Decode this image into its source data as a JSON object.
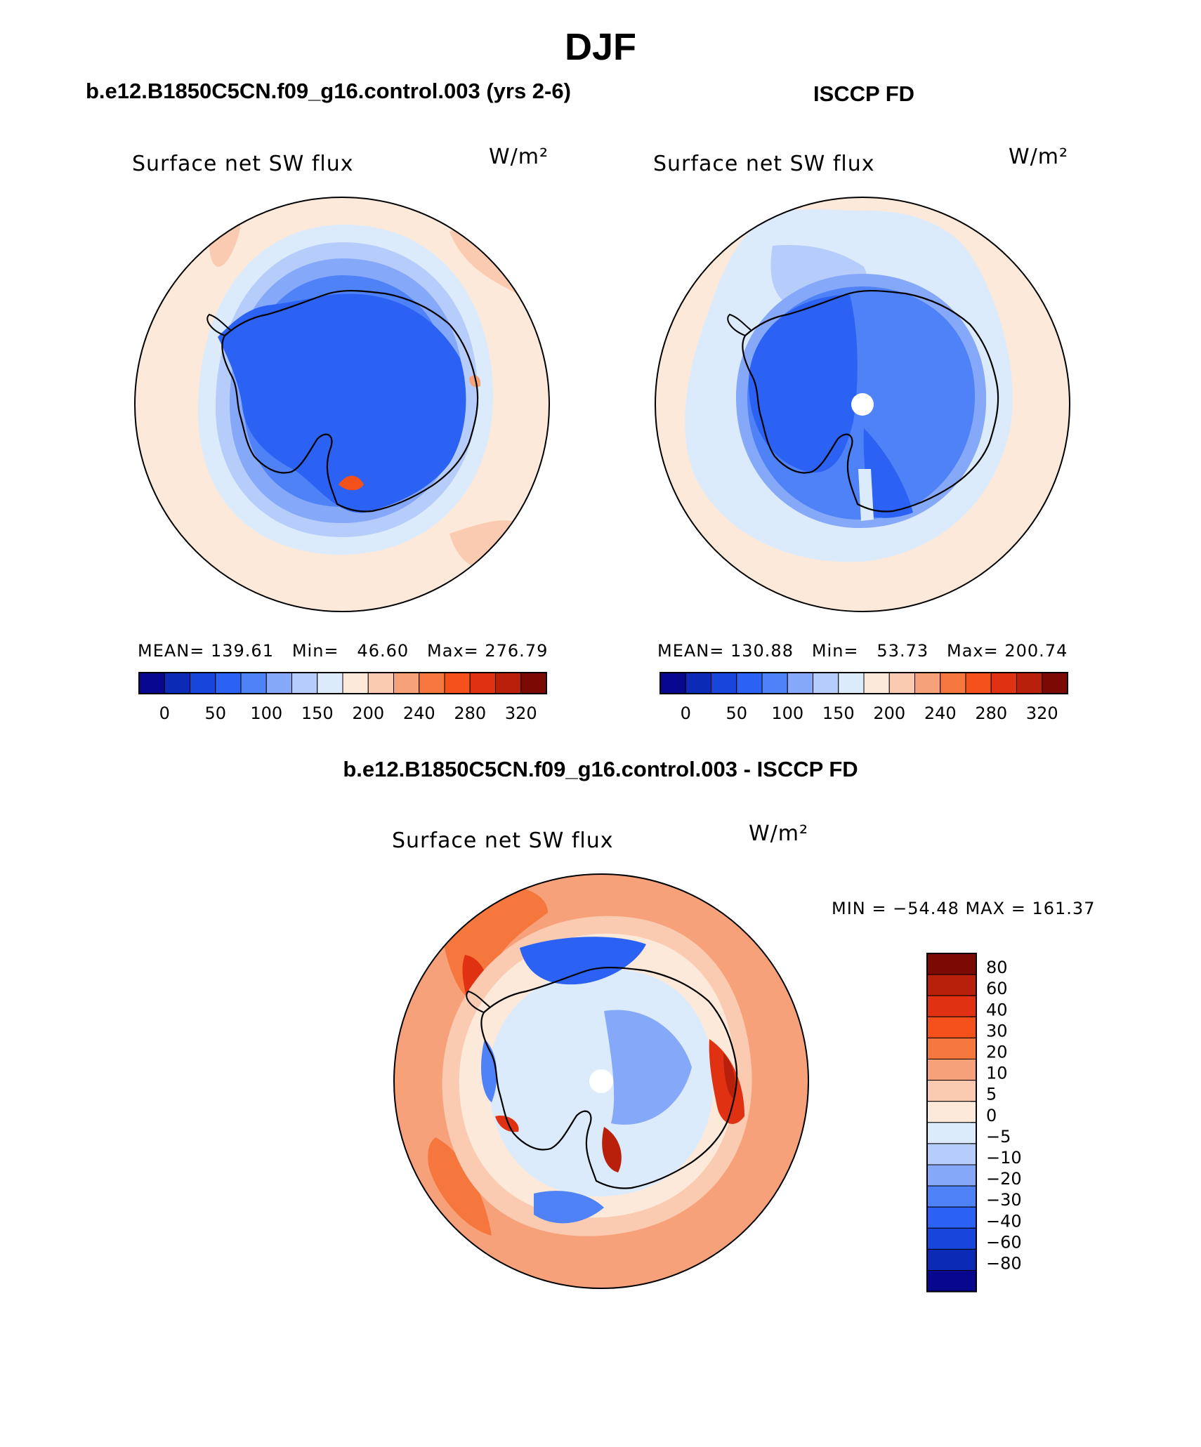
{
  "figure": {
    "title": "DJF",
    "panel_titles": {
      "model": "b.e12.B1850C5CN.f09_g16.control.003 (yrs 2-6)",
      "obs": "ISCCP FD",
      "diff": "b.e12.B1850C5CN.f09_g16.control.003 - ISCCP FD"
    }
  },
  "palettes": {
    "abs": [
      "#08088f",
      "#0b2bb6",
      "#1845dc",
      "#2c62f4",
      "#4f82f7",
      "#86a8f8",
      "#b6cdfb",
      "#dcebfc",
      "#fde9da",
      "#fbcbb1",
      "#f7a17b",
      "#f5773e",
      "#f4501b",
      "#e03212",
      "#b8200b",
      "#7c0a04"
    ],
    "diff": [
      "#7c0a04",
      "#b8200b",
      "#e03212",
      "#f4501b",
      "#f5773e",
      "#f7a17b",
      "#fbcbb1",
      "#fde9da",
      "#dcebfc",
      "#b6cdfb",
      "#86a8f8",
      "#4f82f7",
      "#2c62f4",
      "#1845dc",
      "#0b2bb6",
      "#08088f"
    ]
  },
  "chart_data": [
    {
      "type": "heatmap",
      "panel": "model",
      "title": "Surface net SW flux",
      "units": "W/m²",
      "stats_text": "MEAN= 139.61   Min=   46.60   Max= 276.79",
      "stats": {
        "mean": 139.61,
        "min": 46.6,
        "max": 276.79
      },
      "colorbar_labels": [
        "0",
        "50",
        "100",
        "150",
        "200",
        "240",
        "280",
        "320"
      ],
      "contour_levels": [
        0,
        25,
        50,
        75,
        100,
        125,
        150,
        175,
        200,
        220,
        240,
        260,
        280,
        300,
        320
      ],
      "region": "Antarctica (south polar stereographic)"
    },
    {
      "type": "heatmap",
      "panel": "obs",
      "title": "Surface net SW flux",
      "units": "W/m²",
      "stats_text": "MEAN= 130.88   Min=   53.73   Max= 200.74",
      "stats": {
        "mean": 130.88,
        "min": 53.73,
        "max": 200.74
      },
      "colorbar_labels": [
        "0",
        "50",
        "100",
        "150",
        "200",
        "240",
        "280",
        "320"
      ],
      "contour_levels": [
        0,
        25,
        50,
        75,
        100,
        125,
        150,
        175,
        200,
        220,
        240,
        260,
        280,
        300,
        320
      ],
      "region": "Antarctica (south polar stereographic)"
    },
    {
      "type": "heatmap",
      "panel": "diff",
      "title": "Surface net SW flux",
      "units": "W/m²",
      "stats_text": "MIN = −54.48 MAX = 161.37",
      "stats": {
        "min": -54.48,
        "max": 161.37
      },
      "colorbar_labels": [
        "80",
        "60",
        "40",
        "30",
        "20",
        "10",
        "5",
        "0",
        "−5",
        "−10",
        "−20",
        "−30",
        "−40",
        "−60",
        "−80"
      ],
      "contour_levels": [
        80,
        60,
        40,
        30,
        20,
        10,
        5,
        0,
        -5,
        -10,
        -20,
        -30,
        -40,
        -60,
        -80
      ],
      "region": "Antarctica (south polar stereographic)"
    }
  ]
}
